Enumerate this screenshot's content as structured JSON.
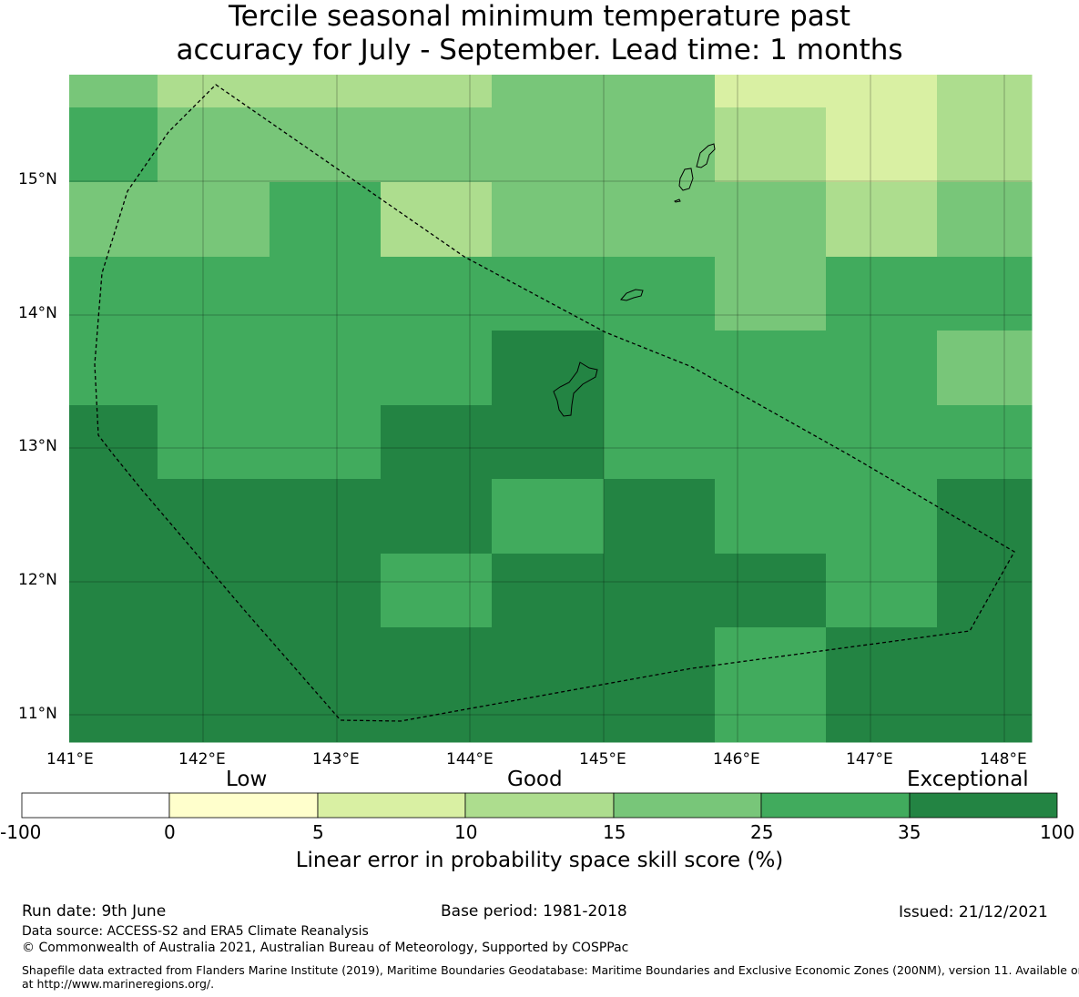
{
  "title_line1": "Tercile seasonal minimum temperature past",
  "title_line2": "accuracy for July - September. Lead time: 1 months",
  "map": {
    "lon_labels": [
      "141°E",
      "142°E",
      "143°E",
      "144°E",
      "145°E",
      "146°E",
      "147°E",
      "148°E"
    ],
    "lat_labels": [
      "15°N",
      "14°N",
      "13°N",
      "12°N",
      "11°N"
    ],
    "category_colors": [
      "#ffffff",
      "#ffffcc",
      "#d9f0a3",
      "#addd8e",
      "#78c679",
      "#41ab5d",
      "#238443"
    ],
    "grid_rows": [
      [
        4,
        3,
        3,
        3,
        4,
        4,
        2,
        2,
        3
      ],
      [
        5,
        4,
        4,
        4,
        4,
        4,
        3,
        2,
        3
      ],
      [
        4,
        4,
        5,
        3,
        4,
        4,
        4,
        3,
        4
      ],
      [
        5,
        5,
        5,
        5,
        5,
        5,
        4,
        5,
        5
      ],
      [
        5,
        5,
        5,
        5,
        6,
        5,
        5,
        5,
        4
      ],
      [
        6,
        5,
        5,
        6,
        6,
        5,
        5,
        5,
        5
      ],
      [
        6,
        6,
        6,
        6,
        5,
        6,
        5,
        5,
        6
      ],
      [
        6,
        6,
        6,
        5,
        6,
        6,
        6,
        5,
        6
      ],
      [
        6,
        6,
        6,
        6,
        6,
        6,
        5,
        6,
        6
      ]
    ]
  },
  "colorbar": {
    "category_labels": [
      "Low",
      "Good",
      "Exceptional"
    ],
    "ticks": [
      "-100",
      "0",
      "5",
      "10",
      "15",
      "25",
      "35",
      "100"
    ],
    "colors": [
      "#ffffff",
      "#ffffcc",
      "#d9f0a3",
      "#addd8e",
      "#78c679",
      "#41ab5d",
      "#238443"
    ],
    "label": "Linear error in probability space skill score (%)"
  },
  "footer": {
    "run_date": "Run date: 9th June",
    "base_period": "Base period: 1981-2018",
    "issued": "Issued: 21/12/2021",
    "data_source": "Data source: ACCESS-S2 and ERA5 Climate Reanalysis",
    "copyright": "© Commonwealth of Australia 2021, Australian Bureau of Meteorology, Supported by COSPPac",
    "shapefile_line1": "Shapefile data extracted from Flanders Marine Institute (2019), Maritime Boundaries Geodatabase: Maritime Boundaries and Exclusive Economic Zones (200NM), version 11. Available online",
    "shapefile_line2": "at http://www.marineregions.org/."
  }
}
